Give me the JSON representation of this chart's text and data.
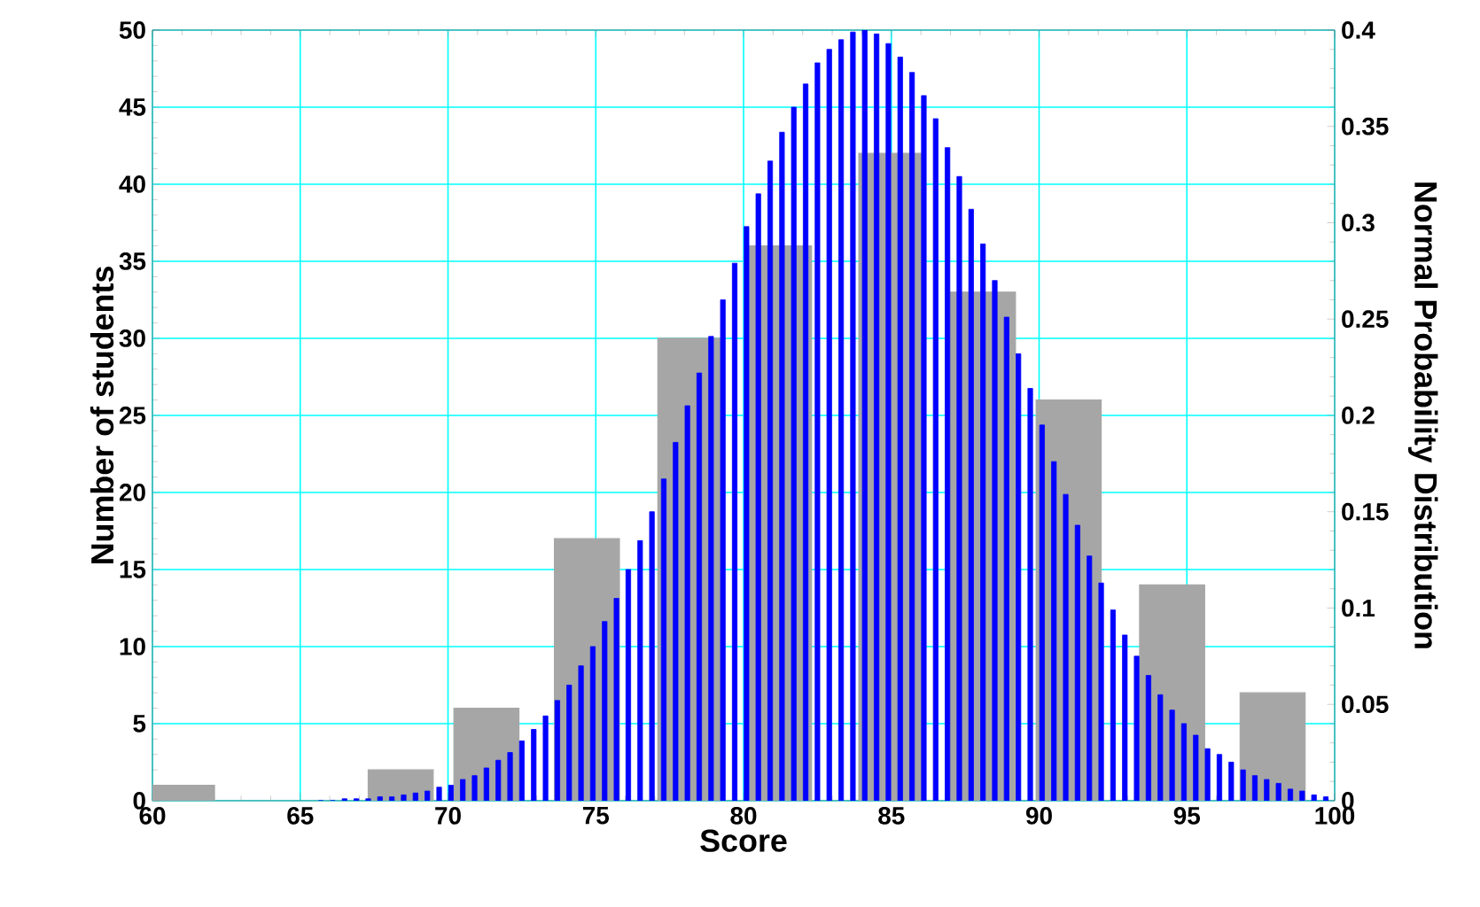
{
  "chart_data": {
    "type": "bar",
    "xlabel": "Score",
    "ylabel": "Number of students",
    "y2label": "Normal Probability Distribution",
    "xlim": [
      60,
      100
    ],
    "xticks": [
      60,
      65,
      70,
      75,
      80,
      85,
      90,
      95,
      100
    ],
    "ylim": [
      0,
      50
    ],
    "yticks": [
      0,
      5,
      10,
      15,
      20,
      25,
      30,
      35,
      40,
      45,
      50
    ],
    "y2lim": [
      0,
      0.4
    ],
    "y2ticks": [
      0,
      0.05,
      0.1,
      0.15,
      0.2,
      0.25,
      0.3,
      0.35,
      0.4
    ],
    "grid": true,
    "series": [
      {
        "color": "#a6a6a6",
        "x": [
          61,
          68.4,
          71.3,
          74.7,
          78.2,
          81.2,
          85,
          88.1,
          91,
          94.5,
          97.9
        ],
        "values": [
          1,
          2,
          6,
          17,
          30,
          36,
          42,
          33,
          26,
          14,
          7
        ]
      },
      {
        "color": "#0000ff",
        "axis": "y2",
        "x": [
          65.7,
          66.1,
          66.5,
          66.9,
          67.3,
          67.7,
          68.1,
          68.5,
          68.9,
          69.3,
          69.7,
          70.1,
          70.5,
          70.9,
          71.3,
          71.7,
          72.1,
          72.5,
          72.9,
          73.3,
          73.7,
          74.1,
          74.5,
          74.9,
          75.3,
          75.7,
          76.1,
          76.5,
          76.9,
          77.3,
          77.7,
          78.1,
          78.5,
          78.9,
          79.3,
          79.7,
          80.1,
          80.5,
          80.9,
          81.3,
          81.7,
          82.1,
          82.5,
          82.9,
          83.3,
          83.7,
          84.1,
          84.5,
          84.9,
          85.3,
          85.7,
          86.1,
          86.5,
          86.9,
          87.3,
          87.7,
          88.1,
          88.5,
          88.9,
          89.3,
          89.7,
          90.1,
          90.5,
          90.9,
          91.3,
          91.7,
          92.1,
          92.5,
          92.9,
          93.3,
          93.7,
          94.1,
          94.5,
          94.9,
          95.3,
          95.7,
          96.1,
          96.5,
          96.9,
          97.3,
          97.7,
          98.1,
          98.5,
          98.9,
          99.3,
          99.7
        ],
        "values": [
          0,
          0,
          0.001,
          0.001,
          0.001,
          0.002,
          0.002,
          0.003,
          0.004,
          0.005,
          0.007,
          0.008,
          0.011,
          0.013,
          0.017,
          0.021,
          0.025,
          0.031,
          0.037,
          0.044,
          0.052,
          0.06,
          0.07,
          0.08,
          0.093,
          0.105,
          0.12,
          0.135,
          0.15,
          0.167,
          0.186,
          0.205,
          0.222,
          0.241,
          0.26,
          0.279,
          0.298,
          0.315,
          0.332,
          0.347,
          0.36,
          0.372,
          0.383,
          0.39,
          0.395,
          0.399,
          0.4,
          0.398,
          0.393,
          0.386,
          0.378,
          0.366,
          0.354,
          0.339,
          0.324,
          0.307,
          0.289,
          0.27,
          0.251,
          0.232,
          0.214,
          0.195,
          0.176,
          0.159,
          0.143,
          0.127,
          0.113,
          0.099,
          0.086,
          0.075,
          0.065,
          0.055,
          0.047,
          0.04,
          0.034,
          0.027,
          0.024,
          0.02,
          0.016,
          0.013,
          0.011,
          0.009,
          0.006,
          0.005,
          0.003,
          0.002
        ]
      }
    ]
  }
}
